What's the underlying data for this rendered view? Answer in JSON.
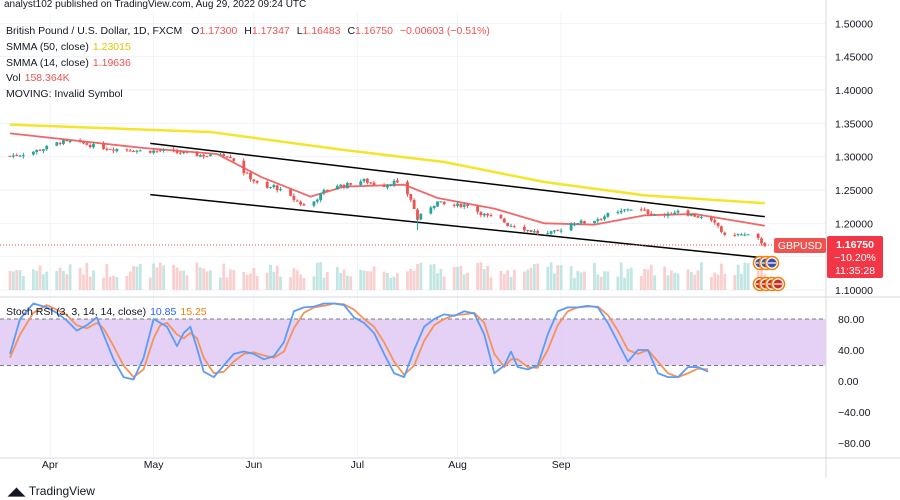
{
  "header": {
    "publisher": "analyst102 published on TradingView.com, Aug 29, 2022 09:24 UTC"
  },
  "legend": {
    "symbol_line": "British Pound / U.S. Dollar, 1D, FXCM",
    "ohlc": {
      "o_label": "O",
      "o": "1.17300",
      "h_label": "H",
      "h": "1.17347",
      "l_label": "L",
      "l": "1.16483",
      "c_label": "C",
      "c": "1.16750",
      "change": "−0.00603 (−0.51%)"
    },
    "smma50_label": "SMMA (50, close)",
    "smma50_value": "1.23015",
    "smma14_label": "SMMA (14, close)",
    "smma14_value": "1.19636",
    "vol_label": "Vol",
    "vol_value": "158.364K",
    "moving_label": "MOVING: Invalid Symbol"
  },
  "rsi_legend": {
    "label": "Stoch RSI (3, 3, 14, 14, close)",
    "k_value": "10.85",
    "d_value": "15.25"
  },
  "badges": {
    "symbol": "GBPUSD",
    "price": "1.16750",
    "pct": "−10.20%",
    "countdown": "11:35:28"
  },
  "brand": {
    "name": "TradingView"
  },
  "colors": {
    "up": "#26a69a",
    "down": "#ef5350",
    "smma50": "#f5e52a",
    "smma14": "#f06868",
    "channel": "#000000",
    "rsi_k": "#5b9cf6",
    "rsi_d": "#f4945a",
    "rsi_band": "#e1c8f4",
    "badge_symbol_bg": "#ef5350",
    "badge_price_bg": "#f23645"
  },
  "chart_data": [
    {
      "type": "candlestick",
      "title": "British Pound / U.S. Dollar, 1D, FXCM",
      "x_ticks": [
        "Apr",
        "May",
        "Jun",
        "Jul",
        "Aug",
        "Sep"
      ],
      "y_ticks": [
        "1.50000",
        "1.45000",
        "1.40000",
        "1.35000",
        "1.30000",
        "1.25000",
        "1.20000",
        "1.15000",
        "1.10000"
      ],
      "ylim": [
        1.1,
        1.5
      ],
      "close_path": [
        [
          0,
          1.301
        ],
        [
          5,
          1.305
        ],
        [
          10,
          1.312
        ],
        [
          15,
          1.322
        ],
        [
          20,
          1.322
        ],
        [
          25,
          1.316
        ],
        [
          30,
          1.312
        ],
        [
          35,
          1.311
        ],
        [
          40,
          1.308
        ],
        [
          45,
          1.309
        ],
        [
          50,
          1.306
        ],
        [
          55,
          1.303
        ],
        [
          60,
          1.301
        ],
        [
          63,
          1.305
        ],
        [
          66,
          1.3
        ],
        [
          68,
          1.29
        ],
        [
          70,
          1.277
        ],
        [
          73,
          1.264
        ],
        [
          76,
          1.25
        ],
        [
          79,
          1.256
        ],
        [
          82,
          1.245
        ],
        [
          85,
          1.236
        ],
        [
          88,
          1.226
        ],
        [
          91,
          1.233
        ],
        [
          94,
          1.248
        ],
        [
          97,
          1.258
        ],
        [
          100,
          1.256
        ],
        [
          103,
          1.262
        ],
        [
          106,
          1.264
        ],
        [
          109,
          1.259
        ],
        [
          112,
          1.257
        ],
        [
          115,
          1.262
        ],
        [
          118,
          1.252
        ],
        [
          120,
          1.236
        ],
        [
          122,
          1.206
        ],
        [
          125,
          1.222
        ],
        [
          128,
          1.232
        ],
        [
          131,
          1.226
        ],
        [
          134,
          1.227
        ],
        [
          137,
          1.228
        ],
        [
          140,
          1.218
        ],
        [
          143,
          1.21
        ],
        [
          146,
          1.21
        ],
        [
          149,
          1.198
        ],
        [
          152,
          1.196
        ],
        [
          155,
          1.19
        ],
        [
          158,
          1.186
        ],
        [
          161,
          1.184
        ],
        [
          164,
          1.188
        ],
        [
          167,
          1.198
        ],
        [
          170,
          1.202
        ],
        [
          173,
          1.201
        ],
        [
          176,
          1.207
        ],
        [
          179,
          1.213
        ],
        [
          182,
          1.215
        ],
        [
          185,
          1.222
        ],
        [
          188,
          1.221
        ],
        [
          191,
          1.216
        ],
        [
          194,
          1.213
        ],
        [
          197,
          1.212
        ],
        [
          200,
          1.22
        ],
        [
          203,
          1.214
        ],
        [
          206,
          1.21
        ],
        [
          209,
          1.205
        ],
        [
          212,
          1.196
        ],
        [
          214,
          1.18
        ],
        [
          217,
          1.184
        ],
        [
          220,
          1.182
        ],
        [
          223,
          1.18
        ],
        [
          226,
          1.1675
        ]
      ],
      "smma50": [
        [
          0,
          1.348
        ],
        [
          60,
          1.337
        ],
        [
          100,
          1.31
        ],
        [
          130,
          1.292
        ],
        [
          160,
          1.262
        ],
        [
          190,
          1.242
        ],
        [
          226,
          1.23015
        ]
      ],
      "smma14": [
        [
          0,
          1.335
        ],
        [
          40,
          1.313
        ],
        [
          62,
          1.304
        ],
        [
          75,
          1.27
        ],
        [
          90,
          1.24
        ],
        [
          100,
          1.255
        ],
        [
          118,
          1.258
        ],
        [
          128,
          1.238
        ],
        [
          145,
          1.222
        ],
        [
          160,
          1.2
        ],
        [
          175,
          1.198
        ],
        [
          190,
          1.212
        ],
        [
          205,
          1.214
        ],
        [
          226,
          1.19636
        ]
      ],
      "channel_upper": [
        [
          42,
          1.32
        ],
        [
          226,
          1.21
        ]
      ],
      "channel_lower": [
        [
          42,
          1.243
        ],
        [
          226,
          1.148
        ]
      ],
      "last_close": 1.1675
    },
    {
      "type": "line",
      "title": "Stoch RSI (3, 3, 14, 14, close)",
      "y_ticks": [
        "80.00",
        "40.00",
        "0.00",
        "−40.00",
        "−80.00"
      ],
      "ylim": [
        -95,
        105
      ],
      "band": [
        20,
        80
      ],
      "series": [
        {
          "name": "K",
          "values": [
            [
              0,
              35
            ],
            [
              3,
              80
            ],
            [
              7,
              100
            ],
            [
              11,
              95
            ],
            [
              14,
              88
            ],
            [
              17,
              78
            ],
            [
              20,
              65
            ],
            [
              23,
              72
            ],
            [
              26,
              82
            ],
            [
              28,
              60
            ],
            [
              31,
              28
            ],
            [
              34,
              5
            ],
            [
              37,
              2
            ],
            [
              40,
              30
            ],
            [
              43,
              80
            ],
            [
              45,
              75
            ],
            [
              47,
              70
            ],
            [
              50,
              45
            ],
            [
              52,
              62
            ],
            [
              54,
              70
            ],
            [
              56,
              42
            ],
            [
              58,
              12
            ],
            [
              61,
              5
            ],
            [
              64,
              20
            ],
            [
              67,
              35
            ],
            [
              70,
              38
            ],
            [
              73,
              35
            ],
            [
              76,
              28
            ],
            [
              79,
              32
            ],
            [
              82,
              50
            ],
            [
              85,
              90
            ],
            [
              88,
              95
            ],
            [
              91,
              96
            ],
            [
              94,
              100
            ],
            [
              97,
              100
            ],
            [
              100,
              98
            ],
            [
              103,
              82
            ],
            [
              106,
              75
            ],
            [
              109,
              62
            ],
            [
              112,
              35
            ],
            [
              115,
              10
            ],
            [
              118,
              5
            ],
            [
              121,
              40
            ],
            [
              124,
              70
            ],
            [
              127,
              80
            ],
            [
              130,
              86
            ],
            [
              133,
              84
            ],
            [
              136,
              90
            ],
            [
              139,
              87
            ],
            [
              142,
              60
            ],
            [
              145,
              10
            ],
            [
              148,
              20
            ],
            [
              150,
              38
            ],
            [
              152,
              18
            ],
            [
              155,
              15
            ],
            [
              158,
              20
            ],
            [
              161,
              60
            ],
            [
              164,
              90
            ],
            [
              167,
              95
            ],
            [
              170,
              95
            ],
            [
              173,
              97
            ],
            [
              176,
              95
            ],
            [
              179,
              75
            ],
            [
              182,
              50
            ],
            [
              185,
              25
            ],
            [
              188,
              40
            ],
            [
              191,
              40
            ],
            [
              194,
              10
            ],
            [
              197,
              5
            ],
            [
              200,
              5
            ],
            [
              203,
              18
            ],
            [
              206,
              18
            ],
            [
              209,
              12
            ]
          ]
        },
        {
          "name": "D",
          "values": [
            [
              0,
              30
            ],
            [
              3,
              60
            ],
            [
              7,
              88
            ],
            [
              11,
              98
            ],
            [
              14,
              92
            ],
            [
              17,
              85
            ],
            [
              20,
              72
            ],
            [
              23,
              68
            ],
            [
              26,
              75
            ],
            [
              28,
              68
            ],
            [
              31,
              45
            ],
            [
              34,
              20
            ],
            [
              37,
              5
            ],
            [
              40,
              15
            ],
            [
              43,
              55
            ],
            [
              45,
              72
            ],
            [
              47,
              75
            ],
            [
              50,
              60
            ],
            [
              52,
              55
            ],
            [
              54,
              62
            ],
            [
              56,
              55
            ],
            [
              58,
              30
            ],
            [
              61,
              10
            ],
            [
              64,
              12
            ],
            [
              67,
              25
            ],
            [
              70,
              35
            ],
            [
              73,
              37
            ],
            [
              76,
              33
            ],
            [
              79,
              30
            ],
            [
              82,
              38
            ],
            [
              85,
              68
            ],
            [
              88,
              88
            ],
            [
              91,
              95
            ],
            [
              94,
              97
            ],
            [
              97,
              100
            ],
            [
              100,
              99
            ],
            [
              103,
              92
            ],
            [
              106,
              80
            ],
            [
              109,
              70
            ],
            [
              112,
              50
            ],
            [
              115,
              25
            ],
            [
              118,
              8
            ],
            [
              121,
              20
            ],
            [
              124,
              52
            ],
            [
              127,
              72
            ],
            [
              130,
              80
            ],
            [
              133,
              85
            ],
            [
              136,
              86
            ],
            [
              139,
              88
            ],
            [
              142,
              75
            ],
            [
              145,
              35
            ],
            [
              148,
              18
            ],
            [
              150,
              28
            ],
            [
              152,
              28
            ],
            [
              155,
              18
            ],
            [
              158,
              17
            ],
            [
              161,
              40
            ],
            [
              164,
              72
            ],
            [
              167,
              90
            ],
            [
              170,
              95
            ],
            [
              173,
              96
            ],
            [
              176,
              96
            ],
            [
              179,
              85
            ],
            [
              182,
              65
            ],
            [
              185,
              40
            ],
            [
              188,
              35
            ],
            [
              191,
              40
            ],
            [
              194,
              25
            ],
            [
              197,
              10
            ],
            [
              200,
              5
            ],
            [
              203,
              10
            ],
            [
              206,
              16
            ],
            [
              209,
              15
            ]
          ]
        }
      ]
    }
  ]
}
